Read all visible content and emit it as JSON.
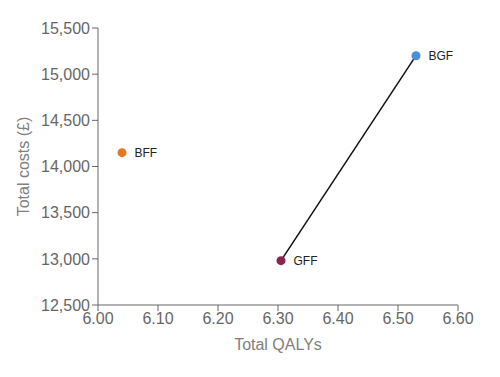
{
  "chart_data": {
    "type": "scatter",
    "xlabel": "Total QALYs",
    "ylabel": "Total costs (£)",
    "points": [
      {
        "label": "BFF",
        "x": 6.04,
        "y": 14150,
        "color": "#E87722"
      },
      {
        "label": "GFF",
        "x": 6.305,
        "y": 12980,
        "color": "#8B2252"
      },
      {
        "label": "BGF",
        "x": 6.53,
        "y": 15200,
        "color": "#4A90D9"
      }
    ],
    "frontier_line": {
      "x": [
        6.305,
        6.53
      ],
      "y": [
        12980,
        15200
      ],
      "color": "#111111"
    },
    "xlim": [
      6.0,
      6.6
    ],
    "ylim": [
      12500,
      15500
    ],
    "xticks": [
      {
        "value": 6.0,
        "label": "6.00"
      },
      {
        "value": 6.1,
        "label": "6.10"
      },
      {
        "value": 6.2,
        "label": "6.20"
      },
      {
        "value": 6.3,
        "label": "6.30"
      },
      {
        "value": 6.4,
        "label": "6.40"
      },
      {
        "value": 6.5,
        "label": "6.50"
      },
      {
        "value": 6.6,
        "label": "6.60"
      }
    ],
    "yticks": [
      {
        "value": 12500,
        "label": "12,500"
      },
      {
        "value": 13000,
        "label": "13,000"
      },
      {
        "value": 13500,
        "label": "13,500"
      },
      {
        "value": 14000,
        "label": "14,000"
      },
      {
        "value": 14500,
        "label": "14,500"
      },
      {
        "value": 15000,
        "label": "15,000"
      },
      {
        "value": 15500,
        "label": "15,500"
      }
    ]
  }
}
